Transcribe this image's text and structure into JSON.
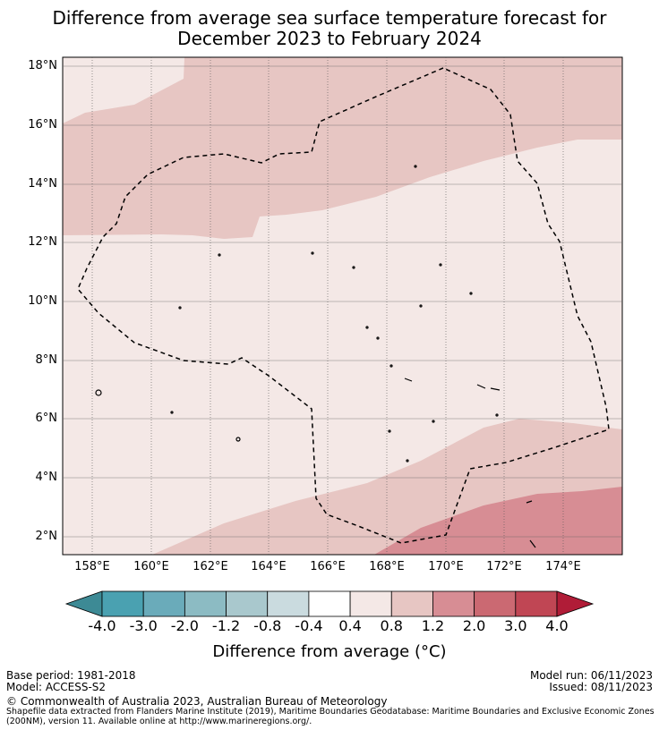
{
  "title_line1": "Difference from average sea surface temperature forecast for",
  "title_line2": "December 2023 to February 2024",
  "lat_labels": [
    "18°N",
    "16°N",
    "14°N",
    "12°N",
    "10°N",
    "8°N",
    "6°N",
    "4°N",
    "2°N"
  ],
  "lon_labels": [
    "158°E",
    "160°E",
    "162°E",
    "164°E",
    "166°E",
    "168°E",
    "170°E",
    "172°E",
    "174°E"
  ],
  "colorbar": {
    "ticks": [
      "-4.0",
      "-3.0",
      "-2.0",
      "-1.2",
      "-0.8",
      "-0.4",
      "0.4",
      "0.8",
      "1.2",
      "2.0",
      "3.0",
      "4.0"
    ],
    "colors": [
      "#4aa1b1",
      "#6aabba",
      "#8cbbc3",
      "#a9c8cd",
      "#cadbdf",
      "#ffffff",
      "#f4e8e6",
      "#e7c6c3",
      "#d78d94",
      "#cb6972",
      "#c04654"
    ],
    "under_color": "#3d8a95",
    "over_color": "#b01c37",
    "label": "Difference from average (°C)"
  },
  "footer": {
    "base_period": "Base period: 1981-2018",
    "model": "Model: ACCESS-S2",
    "model_run": "Model run: 06/11/2023",
    "issued": "Issued: 08/11/2023",
    "copyright": "© Commonwealth of Australia 2023, Australian Bureau of Meteorology",
    "credit_line1": "Shapefile data extracted from Flanders Marine Institute (2019), Maritime Boundaries Geodatabase: Maritime Boundaries and Exclusive Economic Zones",
    "credit_line2": "(200NM), version 11. Available online at http://www.marineregions.org/."
  }
}
